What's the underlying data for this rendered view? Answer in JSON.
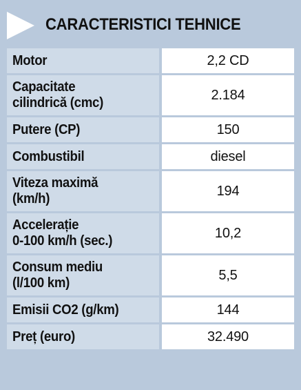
{
  "header": {
    "title": "CARACTERISTICI TEHNICE"
  },
  "rows": [
    {
      "label": "Motor",
      "value": "2,2 CD"
    },
    {
      "label": "Capacitate",
      "label2": "cilindrică (cmc)",
      "value": "2.184"
    },
    {
      "label": "Putere (CP)",
      "value": "150"
    },
    {
      "label": "Combustibil",
      "value": "diesel"
    },
    {
      "label": "Viteza maximă",
      "label2": "(km/h)",
      "value": "194"
    },
    {
      "label": "Accelerație",
      "label2": "0-100 km/h (sec.)",
      "value": "10,2"
    },
    {
      "label": "Consum mediu",
      "label2": "(l/100 km)",
      "value": "5,5"
    },
    {
      "label": "Emisii CO2 (g/km)",
      "value": "144"
    },
    {
      "label": "Preț (euro)",
      "value": "32.490"
    }
  ]
}
